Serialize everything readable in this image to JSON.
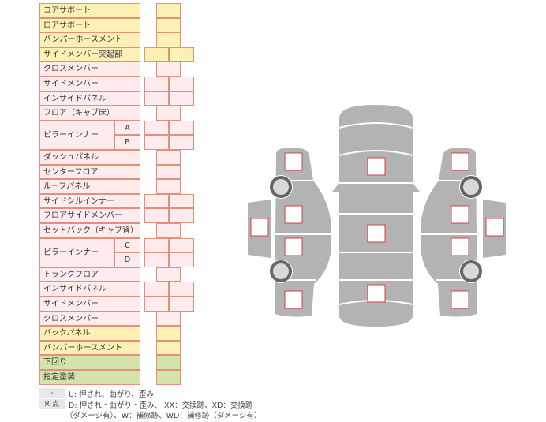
{
  "rows": [
    {
      "label": "コアサポート",
      "color": "y",
      "cols": 1
    },
    {
      "label": "ロアサポート",
      "color": "y",
      "cols": 1
    },
    {
      "label": "バンパーホースメント",
      "color": "y",
      "cols": 1
    },
    {
      "label": "サイドメンバー突起部",
      "color": "y",
      "cols": 2
    },
    {
      "label": "クロスメンバー",
      "color": "p",
      "cols": 1
    },
    {
      "label": "サイドメンバー",
      "color": "p",
      "cols": 2
    },
    {
      "label": "インサイドパネル",
      "color": "p",
      "cols": 2
    },
    {
      "label": "フロア（キャブ床）",
      "color": "p",
      "cols": 1
    },
    {
      "label": "ピラーインナー",
      "sub": "A",
      "color": "p",
      "cols": 2
    },
    {
      "label": "",
      "sub": "B",
      "color": "p",
      "cols": 2
    },
    {
      "label": "ダッシュパネル",
      "color": "p",
      "cols": 1
    },
    {
      "label": "センターフロア",
      "color": "p",
      "cols": 1
    },
    {
      "label": "ルーフパネル",
      "color": "p",
      "cols": 1
    },
    {
      "label": "サイドシルインナー",
      "color": "p",
      "cols": 2
    },
    {
      "label": "フロアサイドメンバー",
      "color": "p",
      "cols": 2
    },
    {
      "label": "セットバック（キャブ背）",
      "color": "p",
      "cols": 1
    },
    {
      "label": "ピラーインナー",
      "sub": "C",
      "color": "p",
      "cols": 2
    },
    {
      "label": "",
      "sub": "D",
      "color": "p",
      "cols": 2
    },
    {
      "label": "トランクフロア",
      "color": "p",
      "cols": 1
    },
    {
      "label": "インサイドパネル",
      "color": "p",
      "cols": 2
    },
    {
      "label": "サイドメンバー",
      "color": "p",
      "cols": 2
    },
    {
      "label": "クロスメンバー",
      "color": "p",
      "cols": 1
    },
    {
      "label": "バックパネル",
      "color": "y",
      "cols": 1
    },
    {
      "label": "バンパーホースメント",
      "color": "y",
      "cols": 1
    },
    {
      "label": "下回り",
      "color": "g",
      "cols": 1
    },
    {
      "label": "指定塗装",
      "color": "g",
      "cols": 1
    }
  ],
  "legend": {
    "key1": "-",
    "text1": "U: 押され、曲がり、歪み",
    "key2": "R 点",
    "text2": "D: 押され・曲がり・歪み、 XX：交換跡、XD：交換跡",
    "text3": "（ダメージ有）、W：補修跡、WD：補修跡（ダメージ有）"
  },
  "colors": {
    "yellow": "#fcf0b4",
    "pink": "#fdebee",
    "green": "#d3e3ab",
    "border": "#e2907a",
    "car": "#b3b3b3",
    "marker": "#d04040"
  }
}
